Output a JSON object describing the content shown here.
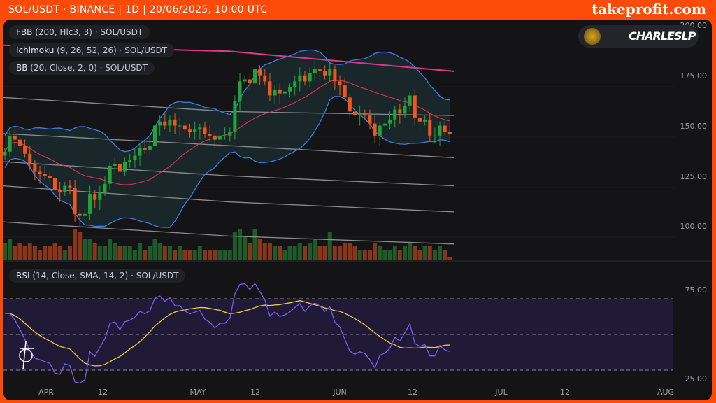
{
  "header": {
    "title": "SOL/USDT · BINANCE | 1D | 20/06/2025, 10:00 UTC",
    "brand": "takeprofit.com"
  },
  "legends": {
    "fbb": {
      "name": "FBB",
      "params": "(200, Hlc3, 3)",
      "symbol": "· SOL/USDT"
    },
    "ichimoku": {
      "name": "Ichimoku",
      "params": "(9, 26, 52, 26)",
      "symbol": "· SOL/USDT"
    },
    "bb": {
      "name": "BB",
      "params": "(20, Close, 2, 0)",
      "symbol": "· SOL/USDT"
    },
    "rsi": {
      "name": "RSI",
      "params": "(14, Close, SMA, 14, 2)",
      "symbol": "· SOL/USDT"
    }
  },
  "badge": {
    "name": "CHARLESLP"
  },
  "colors": {
    "up": "#22a33a",
    "down": "#f0561d",
    "bb": "#3a7be0",
    "bb_basis": "#d9304a",
    "ichimoku": "#e0388a",
    "fbb": "#8a8c90",
    "rsi": "#7b5cf0",
    "rsi_sma": "#e6d23a",
    "background": "#141417",
    "frame": "#fc4a08"
  },
  "chart_data": [
    {
      "type": "candlestick",
      "symbol": "SOL/USDT",
      "interval": "1D",
      "start_date": "2025-03-23",
      "end_date": "2025-06-20",
      "closes": [
        137,
        145,
        143,
        140,
        136,
        131,
        127,
        126,
        125,
        124,
        118,
        117,
        120,
        119,
        106,
        105,
        106,
        116,
        113,
        117,
        121,
        130,
        131,
        127,
        132,
        133,
        135,
        139,
        138,
        140,
        150,
        152,
        150,
        153,
        150,
        150,
        148,
        147,
        148,
        149,
        146,
        145,
        143,
        145,
        145,
        147,
        162,
        172,
        173,
        171,
        178,
        175,
        172,
        165,
        168,
        166,
        167,
        169,
        172,
        175,
        172,
        176,
        178,
        177,
        175,
        178,
        172,
        170,
        164,
        157,
        155,
        156,
        155,
        151,
        145,
        150,
        151,
        153,
        158,
        156,
        160,
        165,
        154,
        152,
        153,
        145,
        145,
        150,
        147,
        146
      ],
      "volume": [
        5,
        6,
        4,
        5,
        4,
        5,
        4,
        3,
        4,
        4,
        5,
        4,
        3,
        4,
        9,
        8,
        6,
        6,
        5,
        4,
        4,
        6,
        5,
        4,
        4,
        4,
        3,
        5,
        3,
        4,
        6,
        5,
        4,
        4,
        3,
        4,
        3,
        3,
        3,
        4,
        3,
        3,
        3,
        3,
        3,
        3,
        8,
        9,
        7,
        5,
        9,
        6,
        5,
        5,
        4,
        4,
        3,
        4,
        4,
        5,
        4,
        5,
        6,
        4,
        4,
        8,
        4,
        4,
        5,
        5,
        4,
        3,
        3,
        3,
        5,
        4,
        3,
        3,
        4,
        3,
        4,
        5,
        4,
        3,
        4,
        4,
        3,
        4,
        3,
        1
      ],
      "fbb_lines": [
        [
          164,
          157,
          155
        ],
        [
          146,
          140,
          134
        ],
        [
          132,
          125,
          120
        ],
        [
          120,
          112,
          107
        ],
        [
          102,
          95,
          91
        ]
      ],
      "ichimoku_line": [
        190,
        187,
        177
      ],
      "ylim": [
        90,
        200
      ],
      "yticks": [
        "200.00",
        "175.00",
        "150.00",
        "125.00",
        "100.00"
      ],
      "xticks": [
        "APR",
        "12",
        "MAY",
        "12",
        "JUN",
        "12",
        "JUL",
        "12",
        "AUG"
      ]
    },
    {
      "type": "line",
      "indicator": "RSI",
      "ylim": [
        25,
        75
      ],
      "levels": [
        70,
        50,
        30
      ],
      "yticks": [
        "75.00",
        "25.00"
      ]
    }
  ]
}
